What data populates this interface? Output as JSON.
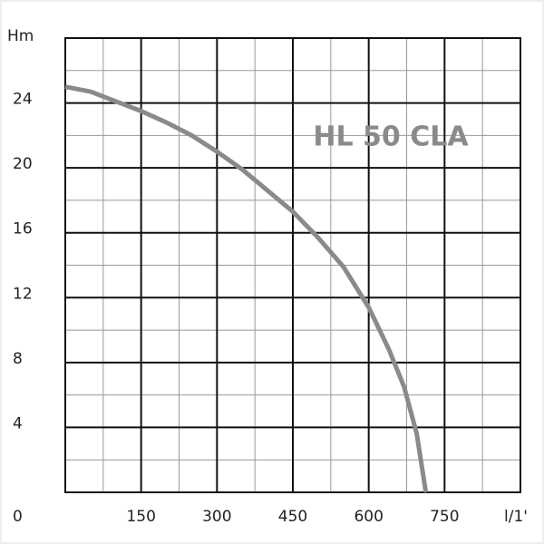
{
  "chart_data": {
    "type": "line",
    "y_label": "Hm",
    "x_label": "l/1'",
    "annotation": "HL 50 CLA",
    "x": [
      0,
      50,
      100,
      150,
      200,
      250,
      300,
      350,
      400,
      450,
      500,
      550,
      600,
      640,
      670,
      695,
      713
    ],
    "series": [
      {
        "color": "#8a8a8a",
        "values": [
          25,
          24.7,
          24.1,
          23.5,
          22.8,
          22,
          21,
          19.9,
          18.6,
          17.3,
          15.7,
          13.9,
          11.4,
          8.8,
          6.5,
          3.6,
          0
        ]
      }
    ],
    "xlim": [
      0,
      900
    ],
    "ylim": [
      0,
      28
    ],
    "xticks": [
      150,
      300,
      450,
      600,
      750
    ],
    "yticks": [
      0,
      4,
      8,
      12,
      16,
      20,
      24
    ],
    "grid": true
  }
}
